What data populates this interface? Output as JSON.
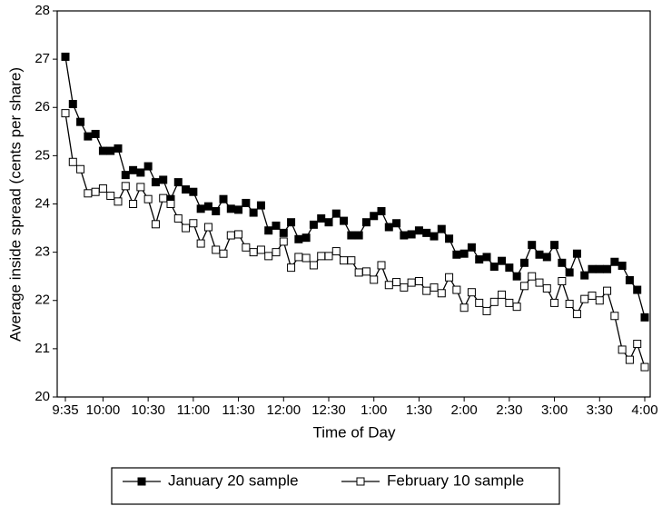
{
  "chart_data": {
    "type": "line",
    "x_label": "Time of Day",
    "y_label": "Average inside spread (cents per share)",
    "categories": [
      "9:35",
      null,
      null,
      null,
      null,
      "10:00",
      null,
      null,
      null,
      null,
      null,
      "10:30",
      null,
      null,
      null,
      null,
      null,
      "11:00",
      null,
      null,
      null,
      null,
      null,
      "11:30",
      null,
      null,
      null,
      null,
      null,
      "12:00",
      null,
      null,
      null,
      null,
      null,
      "12:30",
      null,
      null,
      null,
      null,
      null,
      "1:00",
      null,
      null,
      null,
      null,
      null,
      "1:30",
      null,
      null,
      null,
      null,
      null,
      "2:00",
      null,
      null,
      null,
      null,
      null,
      "2:30",
      null,
      null,
      null,
      null,
      null,
      "3:00",
      null,
      null,
      null,
      null,
      null,
      "3:30",
      null,
      null,
      null,
      null,
      null,
      "4:00"
    ],
    "series": [
      {
        "name": "January 20 sample",
        "color": "#000000",
        "marker_fill": "#000000",
        "values": [
          27.05,
          26.07,
          25.7,
          25.4,
          25.45,
          25.1,
          25.1,
          25.15,
          24.6,
          24.7,
          24.65,
          24.78,
          24.45,
          24.5,
          24.1,
          24.45,
          24.3,
          24.25,
          23.9,
          23.95,
          23.85,
          24.1,
          23.9,
          23.88,
          24.02,
          23.82,
          23.97,
          23.45,
          23.55,
          23.4,
          23.62,
          23.27,
          23.3,
          23.57,
          23.7,
          23.62,
          23.8,
          23.65,
          23.35,
          23.35,
          23.62,
          23.75,
          23.85,
          23.52,
          23.6,
          23.35,
          23.37,
          23.45,
          23.4,
          23.33,
          23.48,
          23.28,
          22.95,
          22.97,
          23.1,
          22.85,
          22.9,
          22.7,
          22.82,
          22.68,
          22.5,
          22.78,
          23.15,
          22.95,
          22.9,
          23.15,
          22.78,
          22.58,
          22.97,
          22.52,
          22.65,
          22.65,
          22.65,
          22.8,
          22.72,
          22.42,
          22.22,
          21.65
        ]
      },
      {
        "name": "February 10 sample",
        "color": "#000000",
        "marker_fill": "#ffffff",
        "values": [
          25.88,
          24.87,
          24.72,
          24.22,
          24.25,
          24.32,
          24.17,
          24.05,
          24.37,
          24.0,
          24.35,
          24.1,
          23.58,
          24.12,
          24.0,
          23.7,
          23.5,
          23.6,
          23.18,
          23.52,
          23.05,
          22.97,
          23.35,
          23.37,
          23.1,
          23.0,
          23.05,
          22.92,
          23.0,
          23.22,
          22.68,
          22.9,
          22.88,
          22.73,
          22.92,
          22.92,
          23.02,
          22.83,
          22.83,
          22.58,
          22.6,
          22.43,
          22.73,
          22.32,
          22.38,
          22.27,
          22.37,
          22.4,
          22.2,
          22.27,
          22.15,
          22.48,
          22.22,
          21.85,
          22.17,
          21.95,
          21.78,
          21.97,
          22.12,
          21.95,
          21.87,
          22.3,
          22.5,
          22.37,
          22.25,
          21.95,
          22.4,
          21.93,
          21.72,
          22.03,
          22.1,
          22.0,
          22.2,
          21.68,
          20.98,
          20.77,
          21.1,
          20.62
        ]
      }
    ],
    "ylim": [
      20,
      28
    ],
    "yticks": [
      20,
      21,
      22,
      23,
      24,
      25,
      26,
      27,
      28
    ],
    "grid": false
  }
}
